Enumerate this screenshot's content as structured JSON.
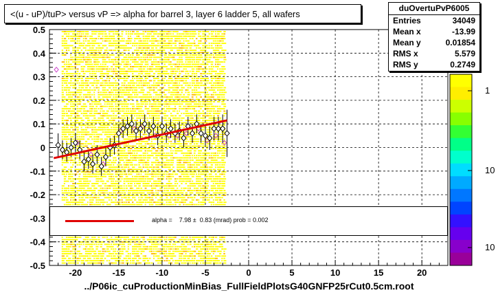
{
  "title": "<(u - uP)/tuP> versus   vP => alpha for barrel 3, layer 6 ladder 5, all wafers",
  "stats": {
    "name": "duOvertuPvP6005",
    "rows": [
      {
        "label": "Entries",
        "value": "34049"
      },
      {
        "label": "Mean x",
        "value": "-13.99"
      },
      {
        "label": "Mean y",
        "value": "0.01854"
      },
      {
        "label": "RMS x",
        "value": "5.579"
      },
      {
        "label": "RMS y",
        "value": "0.2749"
      }
    ]
  },
  "fit_text": "alpha =    7.98 ±  0.83 (mrad) prob = 0.002",
  "footer": "../P06ic_cuProductionMinBias_FullFieldPlotsG40GNFP25rCut0.5cm.root",
  "palette_labels": [
    "1",
    "10",
    "10"
  ],
  "colors": {
    "fit": "#e00000",
    "band_yellow": "#ffff00",
    "band_orange": "#ffbb00",
    "marker": "#000000",
    "marker_alt": "#cc44cc"
  },
  "chart_data": {
    "type": "scatter",
    "xlim": [
      -23,
      23
    ],
    "ylim": [
      -0.5,
      0.5
    ],
    "x_ticks": [
      -20,
      -15,
      -10,
      -5,
      0,
      5,
      10,
      15,
      20
    ],
    "y_ticks": [
      -0.5,
      -0.4,
      -0.3,
      -0.2,
      -0.1,
      0,
      0.1,
      0.2,
      0.3,
      0.4,
      0.5
    ],
    "grid": true,
    "fit_line": {
      "x": [
        -22.5,
        -2.5
      ],
      "y": [
        -0.045,
        0.115
      ]
    },
    "points": [
      {
        "x": -22.0,
        "y": 0.01,
        "e": 0.05
      },
      {
        "x": -21.5,
        "y": -0.01,
        "e": 0.04
      },
      {
        "x": -21.0,
        "y": -0.02,
        "e": 0.04
      },
      {
        "x": -20.5,
        "y": 0.0,
        "e": 0.04
      },
      {
        "x": -20.0,
        "y": 0.02,
        "e": 0.04
      },
      {
        "x": -19.5,
        "y": -0.01,
        "e": 0.04
      },
      {
        "x": -19.0,
        "y": -0.06,
        "e": 0.04
      },
      {
        "x": -18.5,
        "y": -0.05,
        "e": 0.04
      },
      {
        "x": -18.0,
        "y": -0.07,
        "e": 0.04
      },
      {
        "x": -17.5,
        "y": -0.03,
        "e": 0.04
      },
      {
        "x": -17.0,
        "y": -0.08,
        "e": 0.04
      },
      {
        "x": -16.5,
        "y": -0.04,
        "e": 0.04
      },
      {
        "x": -16.0,
        "y": 0.0,
        "e": 0.04
      },
      {
        "x": -15.5,
        "y": 0.01,
        "e": 0.04
      },
      {
        "x": -15.0,
        "y": 0.06,
        "e": 0.04
      },
      {
        "x": -14.5,
        "y": 0.08,
        "e": 0.04
      },
      {
        "x": -14.0,
        "y": 0.09,
        "e": 0.04
      },
      {
        "x": -13.5,
        "y": 0.1,
        "e": 0.04
      },
      {
        "x": -13.0,
        "y": 0.07,
        "e": 0.04
      },
      {
        "x": -12.5,
        "y": 0.08,
        "e": 0.04
      },
      {
        "x": -12.0,
        "y": 0.1,
        "e": 0.04
      },
      {
        "x": -11.5,
        "y": 0.07,
        "e": 0.04
      },
      {
        "x": -11.0,
        "y": 0.09,
        "e": 0.04
      },
      {
        "x": -10.5,
        "y": 0.05,
        "e": 0.04
      },
      {
        "x": -10.0,
        "y": 0.09,
        "e": 0.04
      },
      {
        "x": -9.5,
        "y": 0.06,
        "e": 0.04
      },
      {
        "x": -9.0,
        "y": 0.08,
        "e": 0.04
      },
      {
        "x": -8.5,
        "y": 0.06,
        "e": 0.04
      },
      {
        "x": -8.0,
        "y": 0.07,
        "e": 0.04
      },
      {
        "x": -7.5,
        "y": 0.04,
        "e": 0.04
      },
      {
        "x": -7.0,
        "y": 0.09,
        "e": 0.04
      },
      {
        "x": -6.5,
        "y": 0.06,
        "e": 0.04
      },
      {
        "x": -6.0,
        "y": 0.1,
        "e": 0.04
      },
      {
        "x": -5.5,
        "y": 0.06,
        "e": 0.04
      },
      {
        "x": -5.0,
        "y": 0.05,
        "e": 0.04
      },
      {
        "x": -4.5,
        "y": 0.04,
        "e": 0.05
      },
      {
        "x": -4.0,
        "y": 0.08,
        "e": 0.05
      },
      {
        "x": -3.5,
        "y": 0.08,
        "e": 0.05
      },
      {
        "x": -3.0,
        "y": 0.08,
        "e": 0.06
      },
      {
        "x": -2.5,
        "y": 0.06,
        "e": 0.1
      }
    ],
    "alt_points": [
      {
        "x": -22.2,
        "y": 0.33
      },
      {
        "x": -19.8,
        "y": 0.02
      },
      {
        "x": -18.2,
        "y": -0.03
      },
      {
        "x": -16.8,
        "y": -0.07
      },
      {
        "x": -14.8,
        "y": 0.07
      },
      {
        "x": -13.2,
        "y": 0.08
      },
      {
        "x": -12.2,
        "y": 0.09
      },
      {
        "x": -10.8,
        "y": 0.05
      },
      {
        "x": -9.2,
        "y": 0.05
      },
      {
        "x": -8.2,
        "y": 0.05
      },
      {
        "x": -7.2,
        "y": 0.06
      },
      {
        "x": -5.8,
        "y": 0.08
      },
      {
        "x": -4.8,
        "y": 0.03
      },
      {
        "x": -3.8,
        "y": 0.05
      },
      {
        "x": -2.8,
        "y": 0.02
      }
    ]
  }
}
